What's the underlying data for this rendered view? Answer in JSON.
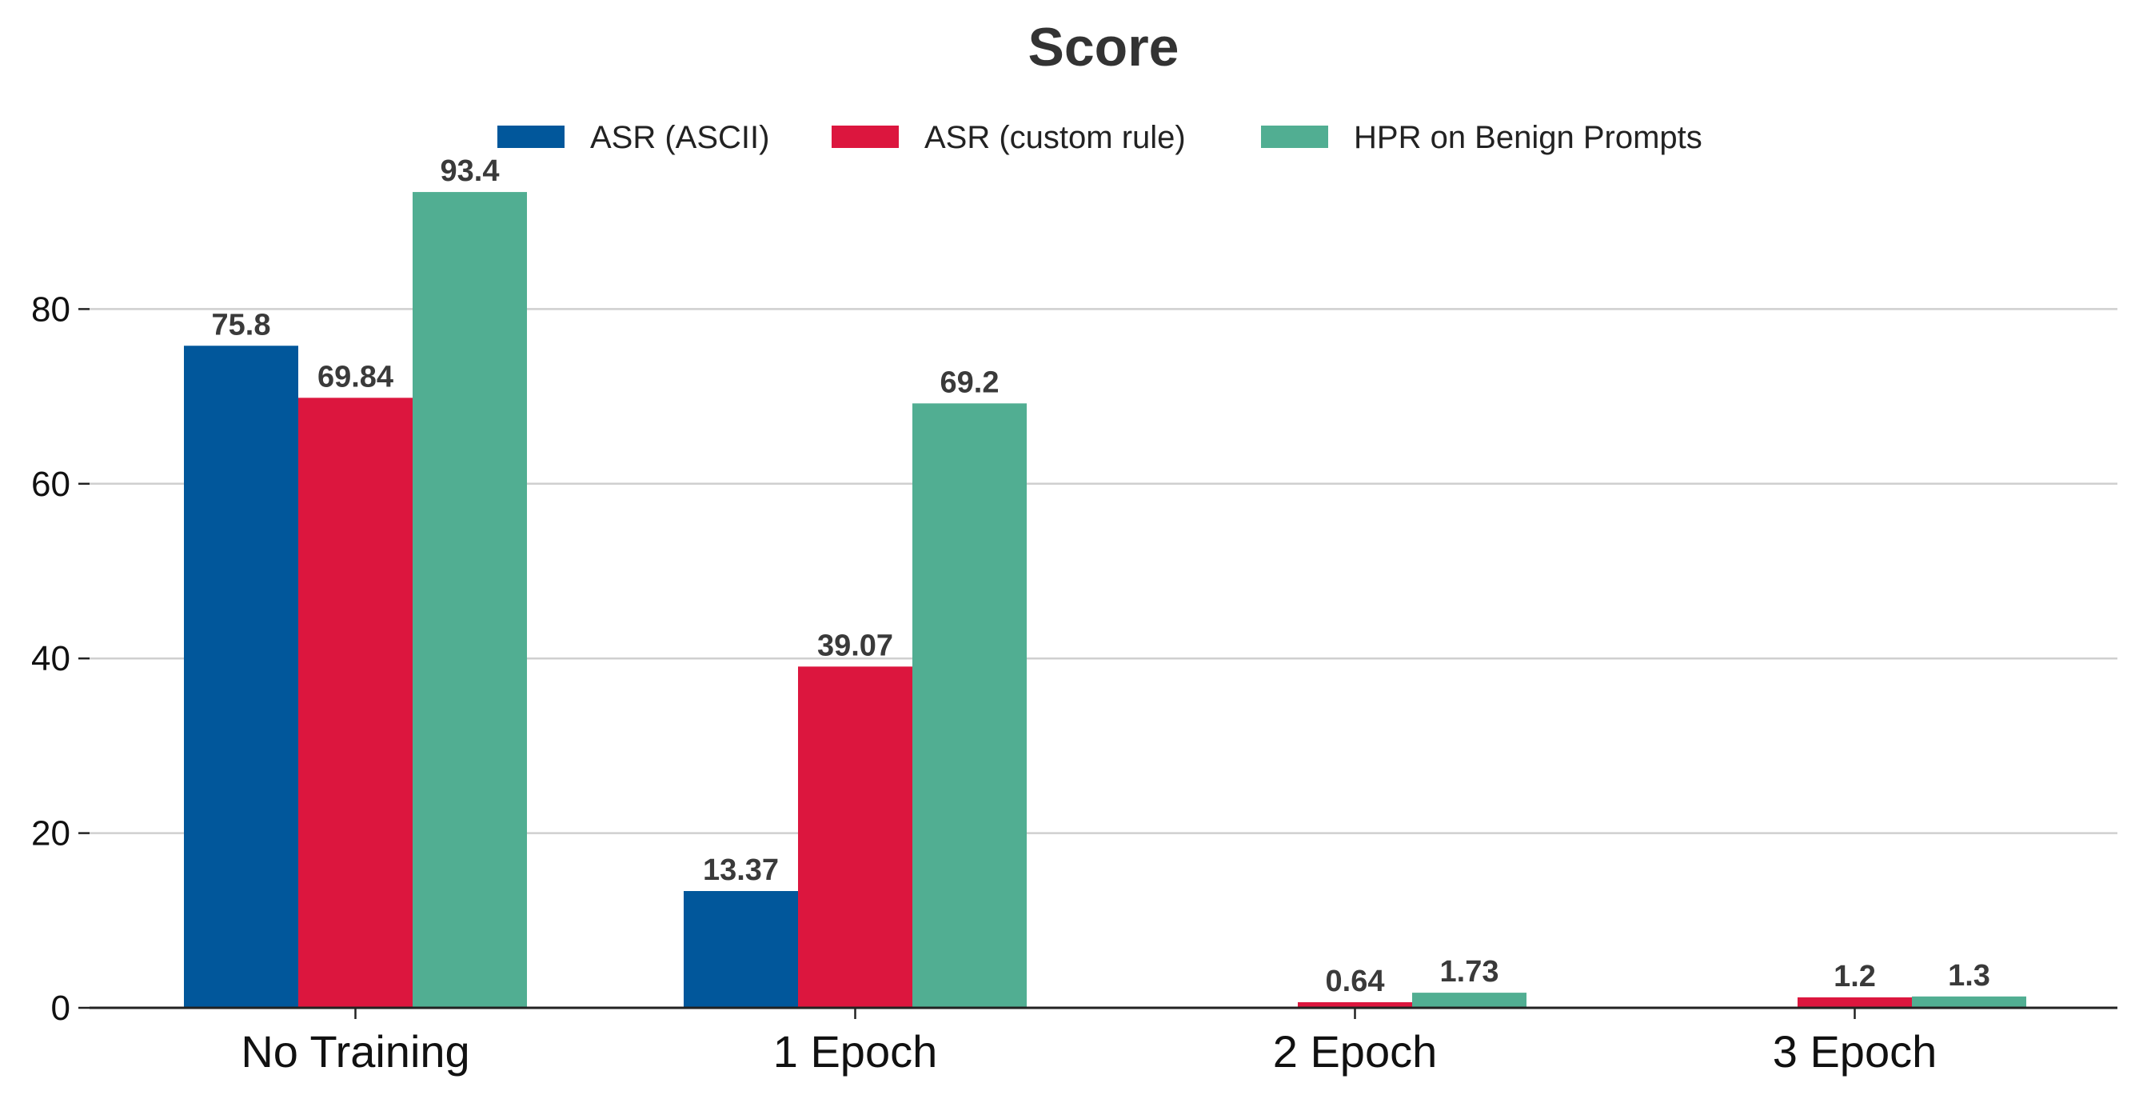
{
  "chart_data": {
    "type": "bar",
    "title": "Score",
    "categories": [
      "No Training",
      "1 Epoch",
      "2 Epoch",
      "3 Epoch"
    ],
    "series": [
      {
        "name": "ASR (ASCII)",
        "color": "#01579b",
        "values": [
          75.8,
          13.37,
          0,
          0
        ],
        "labels": [
          "75.8",
          "13.37",
          "",
          ""
        ]
      },
      {
        "name": "ASR (custom rule)",
        "color": "#dc163e",
        "values": [
          69.84,
          39.07,
          0.64,
          1.2
        ],
        "labels": [
          "69.84",
          "39.07",
          "0.64",
          "1.2"
        ]
      },
      {
        "name": "HPR on Benign Prompts",
        "color": "#51ae92",
        "values": [
          93.4,
          69.2,
          1.73,
          1.3
        ],
        "labels": [
          "93.4",
          "69.2",
          "1.73",
          "1.3"
        ]
      }
    ],
    "yticks": [
      0,
      20,
      40,
      60,
      80
    ],
    "ylim": [
      0,
      100
    ],
    "grid": true,
    "legend": "top-center"
  }
}
